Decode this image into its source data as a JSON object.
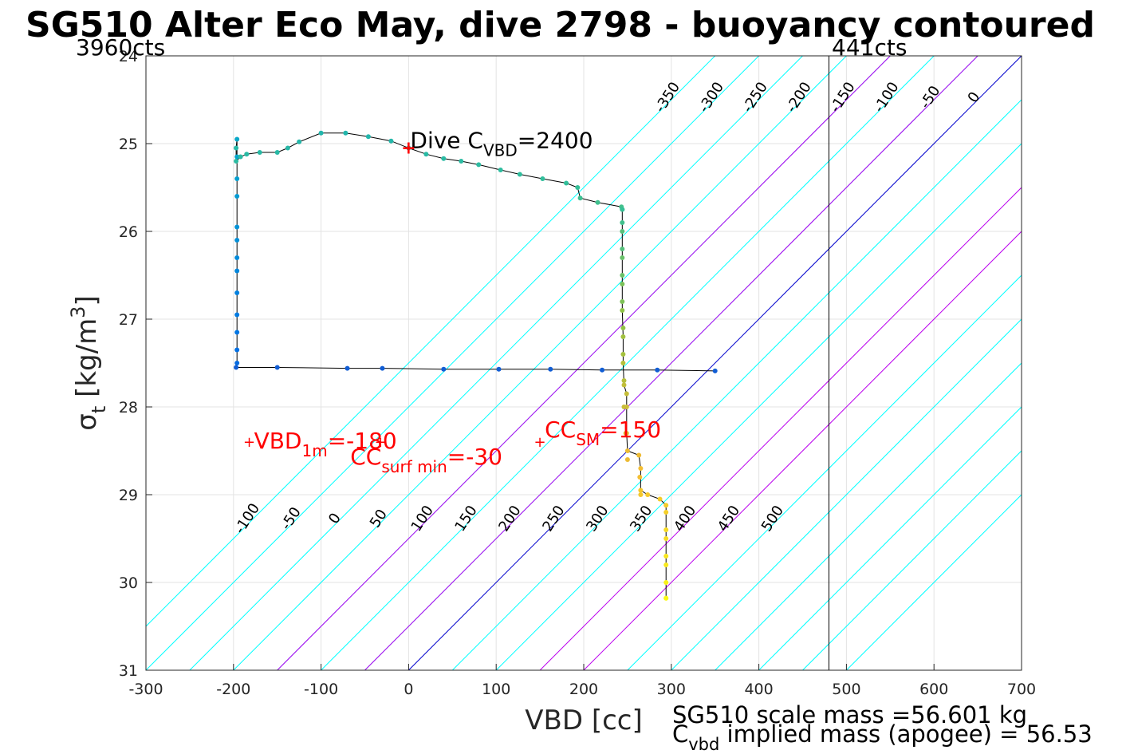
{
  "chart_data": {
    "type": "scatter",
    "title": "SG510 Alter Eco May, dive 2798 - buoyancy contoured",
    "xlabel": "VBD [cc]",
    "ylabel": "σt [kg/m3]",
    "ylabel_base": "σ",
    "ylabel_sub": "t",
    "ylabel_rest": " [kg/m",
    "ylabel_sup": "3",
    "ylabel_end": "]",
    "xlim": [
      -300,
      700
    ],
    "ylim": [
      24,
      31
    ],
    "y_reversed": true,
    "grid": true,
    "xticks": [
      -300,
      -200,
      -100,
      0,
      100,
      200,
      300,
      400,
      500,
      600,
      700
    ],
    "yticks": [
      24,
      25,
      26,
      27,
      28,
      29,
      30,
      31
    ],
    "xtick_labels": [
      "-300",
      "-200",
      "-100",
      "0",
      "100",
      "200",
      "300",
      "400",
      "500",
      "600",
      "700"
    ],
    "ytick_labels": [
      "24",
      "25",
      "26",
      "27",
      "28",
      "29",
      "30",
      "31"
    ],
    "corner_labels": {
      "left": "3960cts",
      "right": "441cts"
    },
    "pump_limit_x": 480,
    "contours": {
      "levels": [
        -350,
        -300,
        -250,
        -200,
        -150,
        -100,
        -50,
        0,
        50,
        100,
        150,
        200,
        250,
        300,
        350,
        400,
        450,
        500
      ],
      "slope_cc_per_sigma": 100,
      "base_color": "#00ffff",
      "zero_color": "#0000cc",
      "highlight_color": "#bb00ee",
      "highlight_levels": [
        150,
        200
      ],
      "bottom_highlight_levels": [
        100,
        200
      ],
      "top_labels": [
        "-350",
        "-300",
        "-250",
        "-200",
        "-150",
        "-100",
        "-50",
        "0",
        "50",
        "100",
        "150",
        "200",
        "250",
        "300",
        "350",
        "400",
        "450",
        "500"
      ],
      "bottom_labels": [
        "-100",
        "-50",
        "0",
        "50",
        "100",
        "150",
        "200",
        "250",
        "300",
        "350",
        "400",
        "450",
        "500"
      ]
    },
    "dive_profile": [
      [
        -197,
        25.05
      ],
      [
        -197,
        25.2
      ],
      [
        -192,
        25.15
      ],
      [
        -185,
        25.12
      ],
      [
        -170,
        25.1
      ],
      [
        -150,
        25.1
      ],
      [
        -138,
        25.05
      ],
      [
        -125,
        24.98
      ],
      [
        -100,
        24.88
      ],
      [
        -72,
        24.88
      ],
      [
        -46,
        24.92
      ],
      [
        -20,
        24.97
      ],
      [
        0,
        25.05
      ],
      [
        20,
        25.12
      ],
      [
        40,
        25.17
      ],
      [
        60,
        25.2
      ],
      [
        80,
        25.24
      ],
      [
        105,
        25.3
      ],
      [
        127,
        25.35
      ],
      [
        153,
        25.4
      ],
      [
        180,
        25.45
      ],
      [
        193,
        25.5
      ],
      [
        196,
        25.62
      ],
      [
        216,
        25.67
      ],
      [
        243,
        25.72
      ],
      [
        244,
        25.75
      ],
      [
        244,
        26.0
      ],
      [
        244,
        26.3
      ],
      [
        244,
        26.6
      ],
      [
        244,
        26.9
      ],
      [
        245,
        27.2
      ],
      [
        245,
        27.5
      ],
      [
        246,
        27.75
      ],
      [
        249,
        27.85
      ],
      [
        249,
        28.0
      ],
      [
        249,
        28.3
      ],
      [
        250,
        28.5
      ],
      [
        263,
        28.55
      ],
      [
        265,
        28.7
      ],
      [
        265,
        28.95
      ],
      [
        273,
        29.0
      ],
      [
        287,
        29.05
      ],
      [
        294,
        29.12
      ],
      [
        294,
        29.4
      ],
      [
        294,
        29.7
      ],
      [
        294,
        30.0
      ],
      [
        294,
        30.18
      ]
    ],
    "climb_profile": [
      [
        294,
        30.18
      ],
      [
        294,
        29.8
      ],
      [
        294,
        29.5
      ],
      [
        294,
        29.2
      ],
      [
        265,
        29.0
      ],
      [
        264,
        28.8
      ],
      [
        250,
        28.6
      ],
      [
        248,
        28.3
      ],
      [
        246,
        28.0
      ],
      [
        246,
        27.7
      ],
      [
        245,
        27.4
      ],
      [
        245,
        27.1
      ],
      [
        244,
        26.8
      ],
      [
        244,
        26.5
      ],
      [
        244,
        26.2
      ],
      [
        244,
        25.9
      ],
      [
        244,
        25.75
      ]
    ],
    "apogee_traverse": [
      [
        -197,
        27.55
      ],
      [
        -150,
        27.55
      ],
      [
        -70,
        27.56
      ],
      [
        -30,
        27.56
      ],
      [
        40,
        27.57
      ],
      [
        103,
        27.57
      ],
      [
        162,
        27.57
      ],
      [
        221,
        27.58
      ],
      [
        284,
        27.58
      ],
      [
        350,
        27.59
      ]
    ],
    "descent_column": [
      [
        -196,
        24.95
      ],
      [
        -196,
        25.15
      ],
      [
        -196,
        25.4
      ],
      [
        -196,
        25.6
      ],
      [
        -196,
        25.95
      ],
      [
        -196,
        26.1
      ],
      [
        -196,
        26.3
      ],
      [
        -196,
        26.45
      ],
      [
        -196,
        26.7
      ],
      [
        -196,
        26.95
      ],
      [
        -196,
        27.15
      ],
      [
        -196,
        27.35
      ],
      [
        -196,
        27.5
      ]
    ],
    "markers": [
      {
        "label": "Dive C",
        "label_sub": "VBD",
        "label_end": "=2400",
        "x": 0,
        "y": 25.05,
        "color": "#000000"
      },
      {
        "label": "VBD",
        "label_sub": "1m",
        "label_end": "=-180",
        "x": -182,
        "y": 28.4,
        "color": "#ff0000"
      },
      {
        "label": "CC",
        "label_sub": "surf min",
        "label_end": "=-30",
        "x": -32,
        "y": 28.4,
        "color": "#ff0000"
      },
      {
        "label": "CC",
        "label_sub": "SM",
        "label_end": "=150",
        "x": 150,
        "y": 28.4,
        "color": "#ff0000"
      }
    ],
    "colormap_note": "points colored by depth (parula)",
    "footer_line1": "SG510 scale mass =56.601 kg",
    "footer_line2_base": "C",
    "footer_line2_sub": "vbd",
    "footer_line2_rest": " implied mass (apogee) = 56.53"
  },
  "colors": {
    "marker_red": "#ff0000",
    "trace": "#000000",
    "grid": "#e3e3e3",
    "axis": "#262626"
  }
}
